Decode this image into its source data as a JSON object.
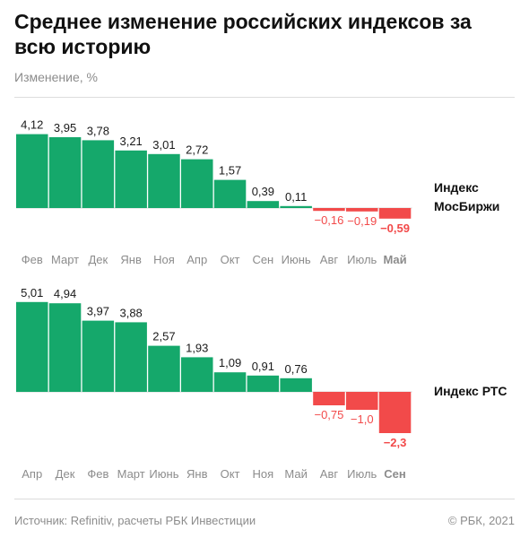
{
  "header": {
    "title": "Среднее изменение российских индексов за всю историю",
    "subtitle": "Изменение, %"
  },
  "footer": {
    "source": "Источник:  Refinitiv, расчеты РБК Инвестиции",
    "copyright": "©  РБК, 2021"
  },
  "colors": {
    "positive": "#15a86b",
    "negative": "#f24a4a",
    "month_label": "#8c8c8c",
    "highlight_month": "#8c8c8c",
    "value_label": "#1a1a1a",
    "neg_value_label": "#f24a4a"
  },
  "chart_data": [
    {
      "type": "bar",
      "series_name": "Индекс МосБиржи",
      "label_lines": [
        "Индекс",
        "МосБиржи"
      ],
      "categories": [
        "Фев",
        "Март",
        "Дек",
        "Янв",
        "Ноя",
        "Апр",
        "Окт",
        "Сен",
        "Июнь",
        "Авг",
        "Июль",
        "Май"
      ],
      "values": [
        4.12,
        3.95,
        3.78,
        3.21,
        3.01,
        2.72,
        1.57,
        0.39,
        0.11,
        -0.16,
        -0.19,
        -0.59
      ],
      "value_labels": [
        "4,12",
        "3,95",
        "3,78",
        "3,21",
        "3,01",
        "2,72",
        "1,57",
        "0,39",
        "0,11",
        "−0,16",
        "−0,19",
        "−0,59"
      ],
      "highlight_category": "Май",
      "ylabel": "Изменение, %"
    },
    {
      "type": "bar",
      "series_name": "Индекс РТС",
      "label_lines": [
        "Индекс РТС"
      ],
      "categories": [
        "Апр",
        "Дек",
        "Фев",
        "Март",
        "Июнь",
        "Янв",
        "Окт",
        "Ноя",
        "Май",
        "Авг",
        "Июль",
        "Сен"
      ],
      "values": [
        5.01,
        4.94,
        3.97,
        3.88,
        2.57,
        1.93,
        1.09,
        0.91,
        0.76,
        -0.75,
        -1.0,
        -2.3
      ],
      "value_labels": [
        "5,01",
        "4,94",
        "3,97",
        "3,88",
        "2,57",
        "1,93",
        "1,09",
        "0,91",
        "0,76",
        "−0,75",
        "−1,0",
        "−2,3"
      ],
      "highlight_category": "Сен",
      "ylabel": "Изменение, %"
    }
  ]
}
